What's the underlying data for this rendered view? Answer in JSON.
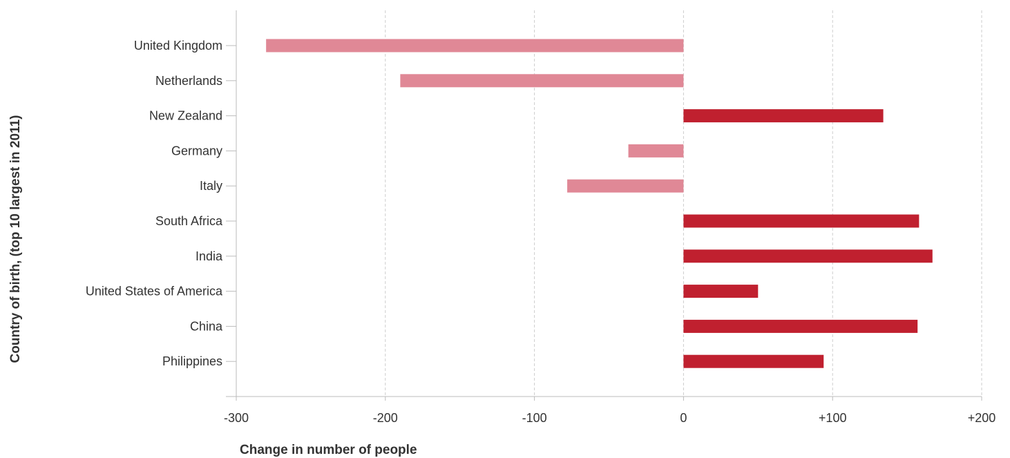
{
  "chart_data": {
    "type": "bar",
    "orientation": "horizontal",
    "categories": [
      "United Kingdom",
      "Netherlands",
      "New Zealand",
      "Germany",
      "Italy",
      "South Africa",
      "India",
      "United States of America",
      "China",
      "Philippines"
    ],
    "values": [
      -280,
      -190,
      134,
      -37,
      -78,
      158,
      167,
      50,
      157,
      94
    ],
    "xlim": [
      -300,
      200
    ],
    "xticks": [
      -300,
      -200,
      -100,
      0,
      100,
      200
    ],
    "xtick_labels": [
      "-300",
      "-200",
      "-100",
      "0",
      "+100",
      "+200"
    ],
    "xlabel": "Change in number of people",
    "ylabel": "Country of birth, (top 10 largest in 2011)",
    "grid": "vertical dashed",
    "colors": {
      "negative": "#e08896",
      "positive": "#c0202f",
      "grid": "#cccccc",
      "axis": "#bbbbbb",
      "text": "#333333"
    }
  }
}
